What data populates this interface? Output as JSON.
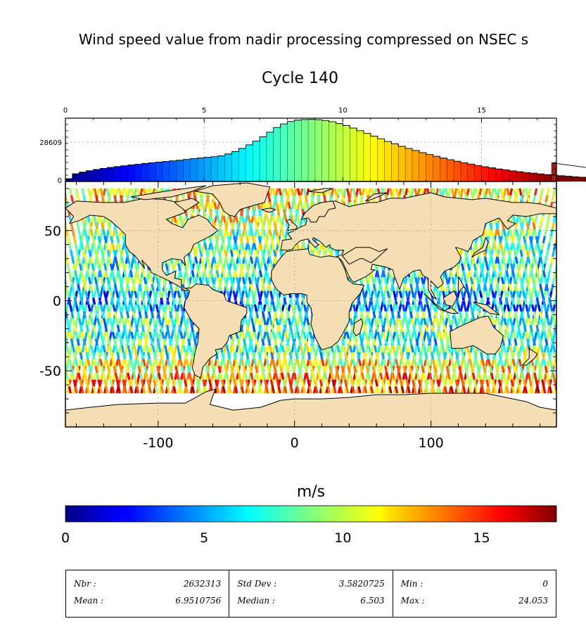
{
  "title": "Wind speed value from nadir processing compressed on NSEC s",
  "subtitle": "Cycle 140",
  "colorbar_label": "m/s",
  "colors": {
    "land": "#f5deb3",
    "ice": "#ffffff",
    "histogram_last_bin": "#a01a10",
    "grid": "#b0b0b0"
  },
  "chart_data": [
    {
      "type": "bar",
      "title": "",
      "xlabel": "",
      "ylabel": "",
      "xlim": [
        0,
        17.7
      ],
      "x_ticks": [
        "0",
        "5",
        "10",
        "15"
      ],
      "y_ticks": [
        "0",
        "28609"
      ],
      "ylim": [
        0,
        46000
      ],
      "bin_start": 0,
      "bin_width": 0.25,
      "values": [
        2000,
        5600,
        6800,
        7800,
        8700,
        9500,
        10200,
        10800,
        11400,
        12000,
        12500,
        13100,
        13600,
        14100,
        14500,
        15000,
        15400,
        16000,
        16600,
        17100,
        17500,
        18000,
        18700,
        20000,
        21700,
        24000,
        26600,
        29300,
        32500,
        35800,
        39200,
        41800,
        43600,
        44600,
        45000,
        45100,
        44900,
        44300,
        43400,
        42100,
        40600,
        38800,
        36900,
        34900,
        32900,
        31000,
        29100,
        27300,
        25600,
        24000,
        22500,
        21000,
        19600,
        18300,
        17000,
        15800,
        14700,
        13600,
        12600,
        11600,
        10700,
        9900,
        9100,
        8400,
        7700,
        7100,
        6500,
        6000,
        5500,
        5000,
        4600,
        4200,
        3800,
        3400,
        3100,
        2800,
        2500,
        2200,
        1900,
        1700,
        1500,
        1300,
        1100,
        900,
        700,
        600,
        500,
        400,
        300,
        300,
        13500
      ],
      "grid": true
    },
    {
      "type": "heatmap",
      "title": "",
      "xlabel": "",
      "ylabel": "",
      "xlim": [
        -168,
        192
      ],
      "ylim": [
        -90,
        85
      ],
      "x_ticks": [
        "-100",
        "0",
        "100"
      ],
      "y_ticks": [
        "50",
        "0",
        "-50"
      ],
      "x_tick_values": [
        -100,
        0,
        100
      ],
      "y_tick_values": [
        50,
        0,
        -50
      ],
      "value_range": [
        0,
        17.7
      ],
      "coverage_lat": [
        -66,
        80
      ],
      "grid": true
    },
    {
      "type": "colorbar",
      "label": "m/s",
      "range": [
        0,
        17.7
      ],
      "ticks": [
        "0",
        "5",
        "10",
        "15"
      ],
      "tick_values": [
        0,
        5,
        10,
        15
      ],
      "colormap": "jet"
    }
  ],
  "stats": [
    {
      "k1": "Nbr :",
      "v1": "2632313",
      "k2": "Mean :",
      "v2": "6.9510756"
    },
    {
      "k1": "Std Dev :",
      "v1": "3.5820725",
      "k2": "Median :",
      "v2": "6.503"
    },
    {
      "k1": "Min :",
      "v1": "0",
      "k2": "Max :",
      "v2": "24.053"
    }
  ]
}
